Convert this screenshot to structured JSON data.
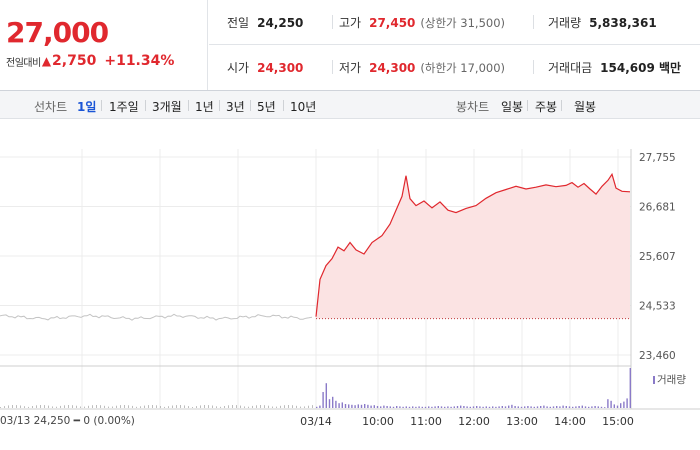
{
  "header": {
    "price": "27,000",
    "change_label": "전일대비",
    "change_arrow": "▲",
    "change_value": "2,750",
    "change_rate": "+11.34%",
    "stats": {
      "prev_close": {
        "label": "전일",
        "value": "24,250"
      },
      "high": {
        "label": "고가",
        "value": "27,450",
        "sub": "(상한가 31,500)"
      },
      "volume": {
        "label": "거래량",
        "value": "5,838,361"
      },
      "open": {
        "label": "시가",
        "value": "24,300"
      },
      "low": {
        "label": "저가",
        "value": "24,300",
        "sub": "(하한가 17,000)"
      },
      "trade_value": {
        "label": "거래대금",
        "value": "154,609 백만"
      }
    }
  },
  "tabs": {
    "line_label": "선차트",
    "line_tabs": [
      "1일",
      "1주일",
      "3개월",
      "1년",
      "3년",
      "5년",
      "10년"
    ],
    "active": "1일",
    "candle_label": "봉차트",
    "candle_tabs": [
      "일봉",
      "주봉",
      "월봉"
    ]
  },
  "chart_data": {
    "type": "line",
    "y_ticks": [
      "27,755",
      "26,681",
      "25,607",
      "24,533",
      "23,460"
    ],
    "ylim": [
      23460,
      27755
    ],
    "x_ticks": [
      "03/14",
      "10:00",
      "11:00",
      "12:00",
      "13:00",
      "14:00",
      "15:00"
    ],
    "prev_day_label": "03/13  24,250 ━ 0 (0.00%)",
    "volume_legend": "거래량",
    "prev_close": 24250,
    "prev_day_level": 24280,
    "today_points": [
      [
        0,
        24290
      ],
      [
        4,
        25100
      ],
      [
        10,
        25400
      ],
      [
        16,
        25550
      ],
      [
        22,
        25800
      ],
      [
        28,
        25720
      ],
      [
        34,
        25900
      ],
      [
        40,
        25740
      ],
      [
        48,
        25650
      ],
      [
        56,
        25900
      ],
      [
        66,
        26050
      ],
      [
        74,
        26300
      ],
      [
        80,
        26600
      ],
      [
        86,
        26900
      ],
      [
        90,
        27350
      ],
      [
        94,
        26850
      ],
      [
        100,
        26700
      ],
      [
        108,
        26800
      ],
      [
        116,
        26650
      ],
      [
        124,
        26780
      ],
      [
        132,
        26600
      ],
      [
        140,
        26550
      ],
      [
        150,
        26640
      ],
      [
        160,
        26700
      ],
      [
        170,
        26860
      ],
      [
        180,
        26980
      ],
      [
        190,
        27050
      ],
      [
        200,
        27120
      ],
      [
        210,
        27060
      ],
      [
        220,
        27100
      ],
      [
        230,
        27150
      ],
      [
        240,
        27110
      ],
      [
        250,
        27140
      ],
      [
        256,
        27200
      ],
      [
        262,
        27100
      ],
      [
        268,
        27180
      ],
      [
        274,
        27060
      ],
      [
        280,
        26950
      ],
      [
        286,
        27120
      ],
      [
        292,
        27250
      ],
      [
        296,
        27380
      ],
      [
        300,
        27080
      ],
      [
        306,
        27010
      ],
      [
        314,
        27000
      ]
    ],
    "volume": {
      "max": 100,
      "today": [
        3,
        6,
        40,
        62,
        22,
        28,
        18,
        12,
        14,
        10,
        9,
        8,
        7,
        9,
        8,
        10,
        8,
        6,
        7,
        5,
        4,
        6,
        5,
        4,
        3,
        5,
        4,
        3,
        4,
        3,
        4,
        3,
        4,
        3,
        3,
        4,
        3,
        4,
        5,
        4,
        3,
        4,
        3,
        4,
        5,
        6,
        5,
        4,
        3,
        4,
        5,
        4,
        3,
        4,
        3,
        4,
        3,
        4,
        5,
        4,
        6,
        8,
        5,
        4,
        3,
        4,
        5,
        4,
        3,
        4,
        5,
        6,
        4,
        3,
        4,
        5,
        4,
        6,
        5,
        4,
        3,
        4,
        5,
        6,
        4,
        3,
        4,
        5,
        4,
        3,
        2,
        22,
        18,
        9,
        6,
        12,
        16,
        24,
        100
      ]
    },
    "grid": true
  }
}
